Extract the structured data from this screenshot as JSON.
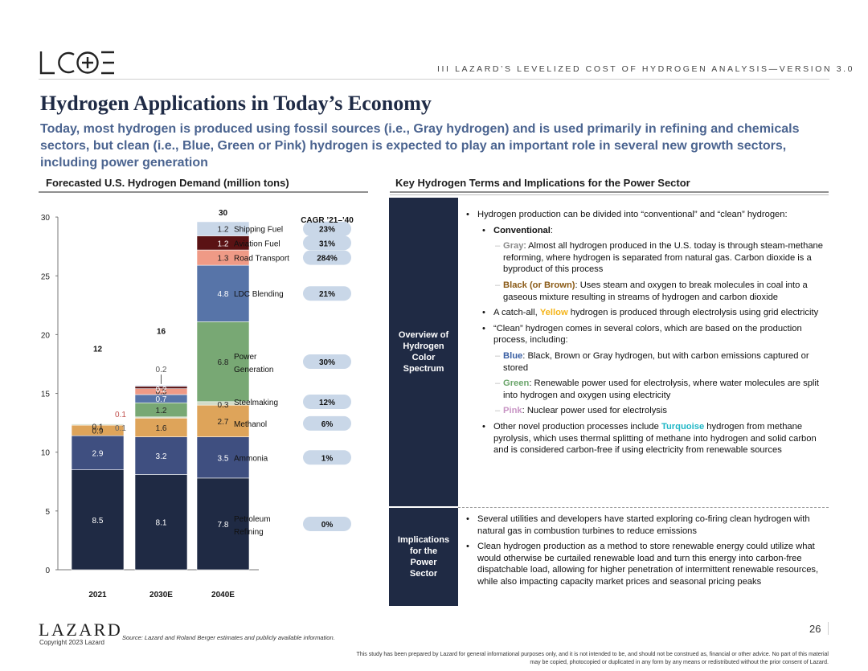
{
  "brand": {
    "logo_text": "LCOE"
  },
  "header": {
    "text": "III   LAZARD’S LEVELIZED COST OF HYDROGEN ANALYSIS—VERSION 3.0"
  },
  "title": "Hydrogen Applications in Today’s Economy",
  "subtitle": "Today, most hydrogen is produced using fossil sources (i.e., Gray hydrogen) and is used primarily in refining and chemicals sectors, but clean (i.e., Blue, Green or Pink) hydrogen is expected to play an important role in several new growth sectors, including power generation",
  "left_section_title": "Forecasted U.S. Hydrogen Demand (million tons)",
  "right_section_title": "Key Hydrogen Terms and Implications for the Power Sector",
  "colors": {
    "navy": "#1f2a44",
    "petroleum_refining": "#1f2a44",
    "ammonia": "#3f4f80",
    "methanol": "#dea45a",
    "steelmaking": "#d2dbc7",
    "power_generation": "#78a874",
    "ldc_blending": "#5774a8",
    "road_transport": "#ef9a86",
    "aviation_fuel": "#5a1214",
    "shipping_fuel": "#c9d7e8",
    "cagr_pill": "#c9d7e8"
  },
  "chart_data": {
    "type": "bar",
    "stacked": true,
    "title": "Forecasted U.S. Hydrogen Demand (million tons)",
    "categories": [
      "2021",
      "2030E",
      "2040E"
    ],
    "ylim": [
      0,
      30
    ],
    "yticks": [
      0,
      5,
      10,
      15,
      20,
      25,
      30
    ],
    "totals": [
      "12",
      "16",
      "30"
    ],
    "series": [
      {
        "name": "Petroleum Refining",
        "values": [
          8.5,
          8.1,
          7.8
        ],
        "labels": [
          "8.5",
          "8.1",
          "7.8"
        ],
        "color": "#1f2a44",
        "cagr": "0%"
      },
      {
        "name": "Ammonia",
        "values": [
          2.9,
          3.2,
          3.5
        ],
        "labels": [
          "2.9",
          "3.2",
          "3.5"
        ],
        "color": "#3f4f80",
        "cagr": "1%"
      },
      {
        "name": "Methanol",
        "values": [
          0.9,
          1.6,
          2.7
        ],
        "labels": [
          "0.9",
          "1.6",
          "2.7"
        ],
        "color": "#dea45a",
        "cagr": "6%"
      },
      {
        "name": "Steelmaking",
        "values": [
          0.1,
          0.1,
          0.3
        ],
        "labels": [
          "0.1",
          "",
          "0.3"
        ],
        "color": "#d2dbc7",
        "cagr": "12%"
      },
      {
        "name": "Power Generation",
        "values": [
          0,
          1.2,
          6.8
        ],
        "labels": [
          "",
          "1.2",
          "6.8"
        ],
        "color": "#78a874",
        "cagr": "30%"
      },
      {
        "name": "LDC Blending",
        "values": [
          0,
          0.7,
          4.8
        ],
        "labels": [
          "",
          "0.7",
          "4.8"
        ],
        "color": "#5774a8",
        "cagr": "21%"
      },
      {
        "name": "Road Transport",
        "values": [
          0,
          0.5,
          1.3
        ],
        "labels": [
          "",
          "0.5",
          "1.3"
        ],
        "color": "#ef9a86",
        "cagr": "284%"
      },
      {
        "name": "Aviation Fuel",
        "values": [
          0,
          0.2,
          1.2
        ],
        "labels": [
          "",
          "0.2",
          "1.2"
        ],
        "color": "#5a1214",
        "cagr": "31%"
      },
      {
        "name": "Shipping Fuel",
        "values": [
          0,
          0.1,
          1.2
        ],
        "labels": [
          "",
          "",
          "1.2"
        ],
        "color": "#c9d7e8",
        "cagr": "23%"
      }
    ],
    "legend_labels": [
      "Shipping Fuel",
      "Aviation Fuel",
      "Road Transport",
      "LDC Blending",
      "Power Generation",
      "Steelmaking",
      "Methanol",
      "Ammonia",
      "Petroleum Refining"
    ],
    "small_side_labels": {
      "2021_steel": "0.1",
      "2030_side_a": "0.1",
      "2030_above": "0.2"
    },
    "cagr_header": "CAGR ’21–’40",
    "grid": false,
    "legend_placement": "right of 2040E bar"
  },
  "terms": {
    "row1_label": [
      "Overview of",
      "Hydrogen",
      "Color",
      "Spectrum"
    ],
    "row2_label": [
      "Implications",
      "for the",
      "Power",
      "Sector"
    ],
    "b_intro": "Hydrogen production can be divided into “conventional” and “clean” hydrogen:",
    "conventional": "Conventional",
    "conventional_suffix": ":",
    "gray_term": "Gray",
    "gray_text": ": Almost all hydrogen produced in the U.S. today is through steam-methane reforming, where hydrogen is separated from natural gas. Carbon dioxide is a byproduct of this process",
    "black_term": "Black (or Brown)",
    "black_text": ": Uses steam and oxygen to break molecules in coal into a gaseous mixture resulting in streams of hydrogen and carbon dioxide",
    "catch_pre": "A catch-all, ",
    "yellow_term": "Yellow",
    "catch_post": " hydrogen is produced through electrolysis using grid electricity",
    "clean_text": "“Clean” hydrogen comes in several colors, which are based on the production process, including:",
    "blue_term": "Blue",
    "blue_text": ": Black, Brown or Gray hydrogen, but with carbon emissions captured or stored",
    "green_term": "Green",
    "green_text": ": Renewable power used for electrolysis, where water molecules are split into hydrogen and oxygen using electricity",
    "pink_term": "Pink",
    "pink_text": ": Nuclear power used for electrolysis",
    "other_pre": "Other novel production processes include ",
    "turq_term": "Turquoise",
    "other_post": " hydrogen from methane pyrolysis, which uses thermal splitting of methane into hydrogen and solid carbon and is considered carbon-free if using electricity from renewable sources",
    "impl1": "Several utilities and developers have started exploring co-firing clean hydrogen with natural gas in combustion turbines to reduce emissions",
    "impl2": "Clean hydrogen production as a method to store renewable energy could utilize what would otherwise be curtailed renewable load and turn this energy into carbon-free dispatchable load, allowing for higher penetration of intermittent renewable resources, while also impacting capacity market prices and seasonal pricing peaks"
  },
  "footer": {
    "logo": "LAZARD",
    "copyright": "Copyright 2023 Lazard",
    "source": "Source:   Lazard and Roland Berger estimates and publicly available information.",
    "page": "26",
    "disclaimer": "This study has been prepared by Lazard for general informational purposes only, and it is not intended to be, and should not be construed as, financial or other advice. No part of this material may be copied, photocopied or duplicated in any form by any means or redistributed without the prior consent of Lazard."
  }
}
